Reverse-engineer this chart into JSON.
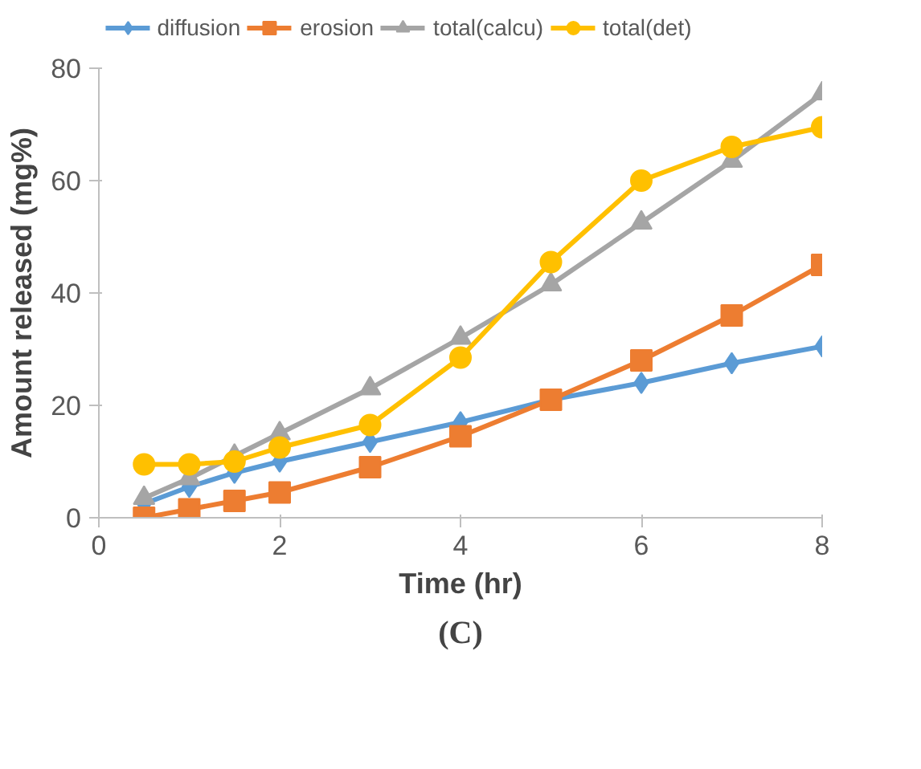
{
  "chart_data": {
    "type": "line",
    "xlabel": "Time (hr)",
    "ylabel": "Amount released (mg%)",
    "x": [
      0.5,
      1,
      1.5,
      2,
      3,
      4,
      5,
      6,
      7,
      8
    ],
    "series": [
      {
        "name": "diffusion",
        "color": "#5b9bd5",
        "marker": "diamond",
        "values": [
          2.5,
          5.5,
          8,
          10,
          13.5,
          17,
          21,
          24,
          27.5,
          30.5
        ]
      },
      {
        "name": "erosion",
        "color": "#ed7d31",
        "marker": "square",
        "values": [
          0,
          1.5,
          3,
          4.5,
          9,
          14.5,
          21,
          28,
          36,
          45
        ]
      },
      {
        "name": "total(calcu)",
        "color": "#a5a5a5",
        "marker": "triangle",
        "values": [
          3.5,
          7,
          11,
          15,
          23,
          32,
          41.5,
          52.5,
          63.5,
          75.5
        ]
      },
      {
        "name": "total(det)",
        "color": "#ffc000",
        "marker": "circle",
        "values": [
          9.5,
          9.5,
          10,
          12.5,
          16.5,
          28.5,
          45.5,
          60,
          66,
          69.5
        ]
      }
    ],
    "xlim": [
      0,
      8
    ],
    "ylim": [
      0,
      80
    ],
    "xticks": [
      0,
      2,
      4,
      6,
      8
    ],
    "yticks": [
      0,
      20,
      40,
      60,
      80
    ],
    "grid": false,
    "legend": "top",
    "line_style": "solid",
    "annotations": [
      "(C)"
    ]
  }
}
